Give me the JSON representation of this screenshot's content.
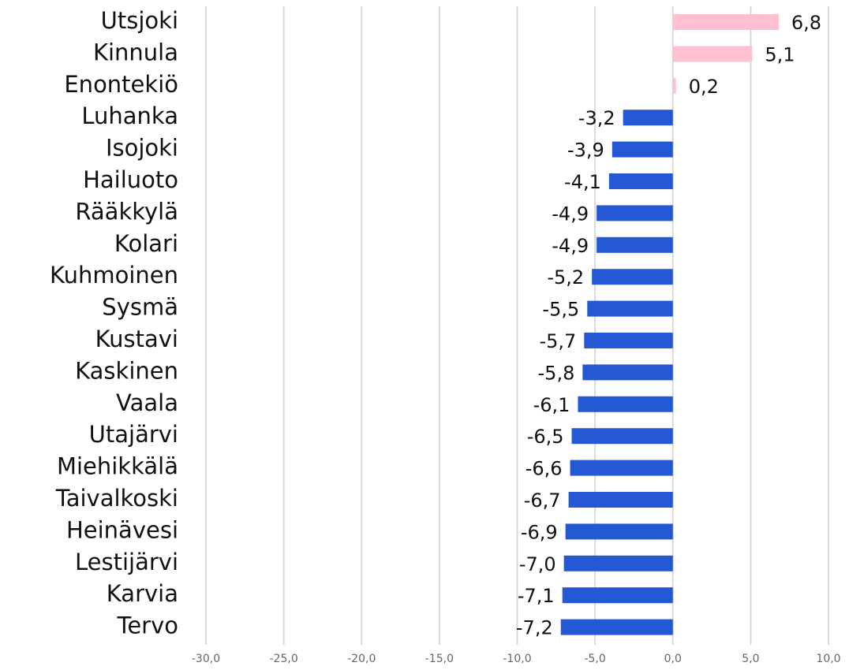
{
  "chart_data": {
    "type": "hbar",
    "categories": [
      "Utsjoki",
      "Kinnula",
      "Enontekiö",
      "Luhanka",
      "Isojoki",
      "Hailuoto",
      "Rääkkylä",
      "Kolari",
      "Kuhmoinen",
      "Sysmä",
      "Kustavi",
      "Kaskinen",
      "Vaala",
      "Utajärvi",
      "Miehikkälä",
      "Taivalkoski",
      "Heinävesi",
      "Lestijärvi",
      "Karvia",
      "Tervo"
    ],
    "values": [
      6.8,
      5.1,
      0.2,
      -3.2,
      -3.9,
      -4.1,
      -4.9,
      -4.9,
      -5.2,
      -5.5,
      -5.7,
      -5.8,
      -6.1,
      -6.5,
      -6.6,
      -6.7,
      -6.9,
      -7.0,
      -7.1,
      -7.2
    ],
    "value_labels": [
      "6,8",
      "5,1",
      "0,2",
      "-3,2",
      "-3,9",
      "-4,1",
      "-4,9",
      "-4,9",
      "-5,2",
      "-5,5",
      "-5,7",
      "-5,8",
      "-6,1",
      "-6,5",
      "-6,6",
      "-6,7",
      "-6,9",
      "-7,0",
      "-7,1",
      "-7,2"
    ],
    "colors": [
      "#ffc0cf",
      "#ffc0cf",
      "#ffc0cf",
      "#2459d3",
      "#2459d3",
      "#2459d3",
      "#2459d3",
      "#2459d3",
      "#2459d3",
      "#2459d3",
      "#2459d3",
      "#2459d3",
      "#2459d3",
      "#2459d3",
      "#2459d3",
      "#2459d3",
      "#2459d3",
      "#2459d3",
      "#2459d3",
      "#2459d3"
    ],
    "xlim": [
      -30,
      10
    ],
    "xticks": [
      {
        "value": -30,
        "label": "-30,0"
      },
      {
        "value": -25,
        "label": "-25,0"
      },
      {
        "value": -20,
        "label": "-20,0"
      },
      {
        "value": -15,
        "label": "-15,0"
      },
      {
        "value": -10,
        "label": "-10,0"
      },
      {
        "value": -5,
        "label": "-5,0"
      },
      {
        "value": 0,
        "label": "0,0"
      },
      {
        "value": 5,
        "label": "5,0"
      },
      {
        "value": 10,
        "label": "10,0"
      }
    ],
    "grid": true
  }
}
